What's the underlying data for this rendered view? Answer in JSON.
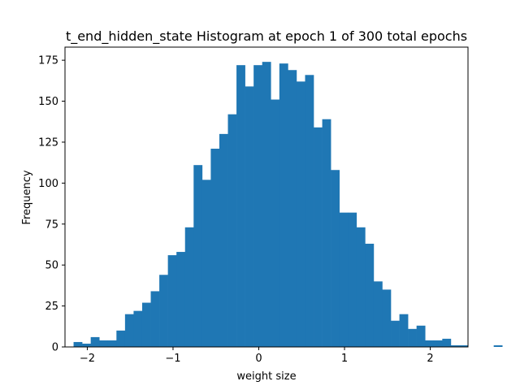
{
  "chart_data": {
    "type": "bar",
    "title": "t_end_hidden_state Histogram at epoch 1 of 300 total epochs",
    "xlabel": "weight size",
    "ylabel": "Frequency",
    "xlim": [
      -2.26,
      2.44
    ],
    "ylim": [
      0,
      183
    ],
    "x_ticks": [
      -2,
      -1,
      0,
      1,
      2
    ],
    "x_tick_labels": [
      "−2",
      "−1",
      "0",
      "1",
      "2"
    ],
    "y_ticks": [
      0,
      25,
      50,
      75,
      100,
      125,
      150,
      175
    ],
    "y_tick_labels": [
      "0",
      "25",
      "50",
      "75",
      "100",
      "125",
      "150",
      "175"
    ],
    "bin_start": -2.16,
    "bin_width": 0.1,
    "values": [
      3,
      2,
      6,
      4,
      4,
      10,
      20,
      22,
      27,
      34,
      44,
      56,
      58,
      73,
      111,
      102,
      121,
      130,
      142,
      172,
      159,
      172,
      174,
      151,
      173,
      169,
      162,
      166,
      134,
      139,
      108,
      82,
      82,
      73,
      63,
      40,
      35,
      16,
      20,
      11,
      13,
      4,
      4,
      5,
      1,
      1,
      0,
      0,
      0,
      1
    ],
    "color": "#1f77b4",
    "grid": false
  }
}
